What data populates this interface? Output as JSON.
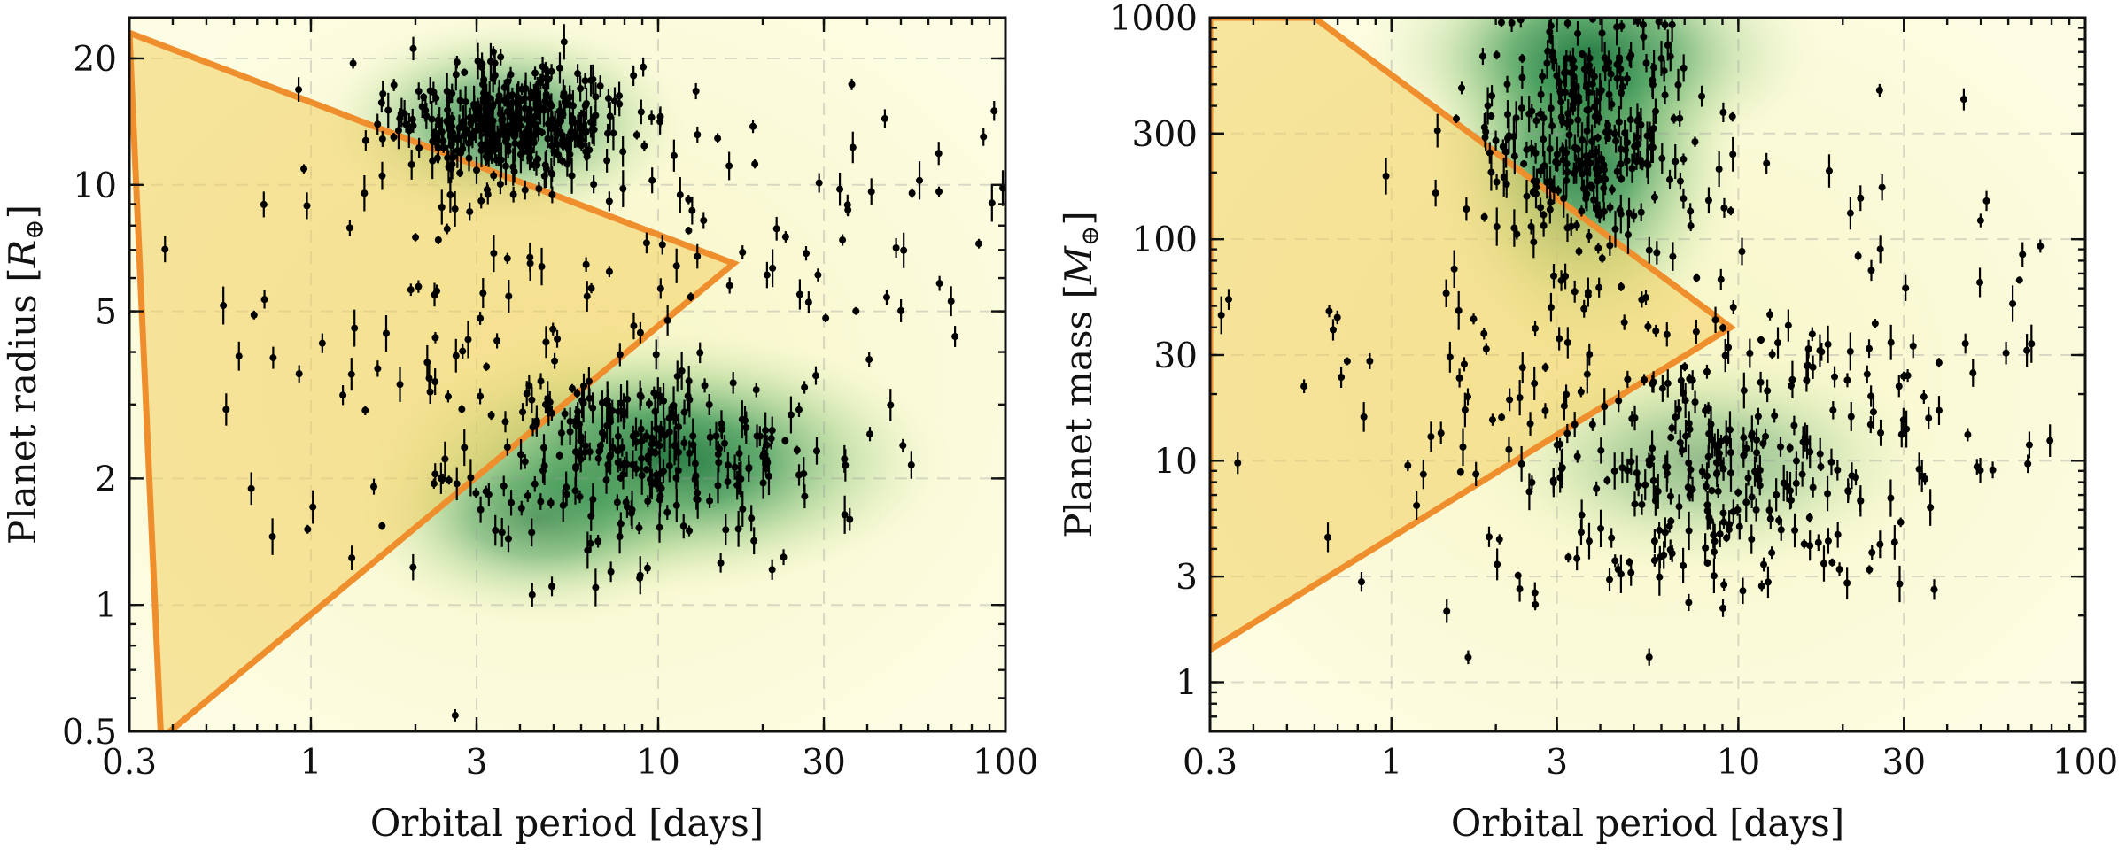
{
  "chart_data": [
    {
      "type": "scatter",
      "x_scale": "log",
      "y_scale": "log",
      "xlabel": "Orbital period [days]",
      "ylabel_text": "Planet radius [",
      "ylabel_symbol": "R",
      "ylabel_subscript": "⊕",
      "ylabel_close": "]",
      "xlim": [
        0.3,
        100
      ],
      "ylim": [
        0.5,
        25
      ],
      "xticks": [
        0.3,
        1,
        3,
        10,
        30,
        100
      ],
      "xtick_labels": [
        "0.3",
        "1",
        "3",
        "10",
        "30",
        "100"
      ],
      "yticks": [
        0.5,
        1,
        2,
        5,
        10,
        20
      ],
      "ytick_labels": [
        "0.5",
        "1",
        "2",
        "5",
        "10",
        "20"
      ],
      "grid": true,
      "desert_boundary": [
        [
          0.3,
          23
        ],
        [
          16.5,
          6.5
        ],
        [
          0.37,
          0.48
        ]
      ],
      "density_peaks": [
        {
          "x": 3.6,
          "y": 14,
          "weight": 0.8
        },
        {
          "x": 10,
          "y": 2.2,
          "weight": 1.0
        },
        {
          "x": 4.5,
          "y": 1.6,
          "weight": 0.6
        }
      ],
      "colors": {
        "desert_fill": "#f3cf63",
        "desert_edge": "#ef8e2c",
        "density": "#1f7a3d",
        "background": "#fdfde4"
      }
    },
    {
      "type": "scatter",
      "x_scale": "log",
      "y_scale": "log",
      "xlabel": "Orbital period [days]",
      "ylabel_text": "Planet mass [",
      "ylabel_symbol": "M",
      "ylabel_subscript": "⊕",
      "ylabel_close": "]",
      "xlim": [
        0.3,
        100
      ],
      "ylim": [
        0.6,
        1000
      ],
      "xticks": [
        0.3,
        1,
        3,
        10,
        30,
        100
      ],
      "xtick_labels": [
        "0.3",
        "1",
        "3",
        "10",
        "30",
        "100"
      ],
      "yticks": [
        1,
        3,
        10,
        30,
        100,
        300,
        1000
      ],
      "ytick_labels": [
        "1",
        "3",
        "10",
        "30",
        "100",
        "300",
        "1000"
      ],
      "grid": true,
      "desert_boundary": [
        [
          0.3,
          1000
        ],
        [
          0.6,
          1000
        ],
        [
          9.5,
          40
        ],
        [
          0.3,
          1.4
        ]
      ],
      "density_peaks": [
        {
          "x": 3.6,
          "y": 300,
          "weight": 1.0
        },
        {
          "x": 3.8,
          "y": 700,
          "weight": 0.7
        },
        {
          "x": 8,
          "y": 10,
          "weight": 0.45
        }
      ],
      "colors": {
        "desert_fill": "#f3cf63",
        "desert_edge": "#ef8e2c",
        "density": "#1f7a3d",
        "background": "#fdfde4"
      }
    }
  ]
}
